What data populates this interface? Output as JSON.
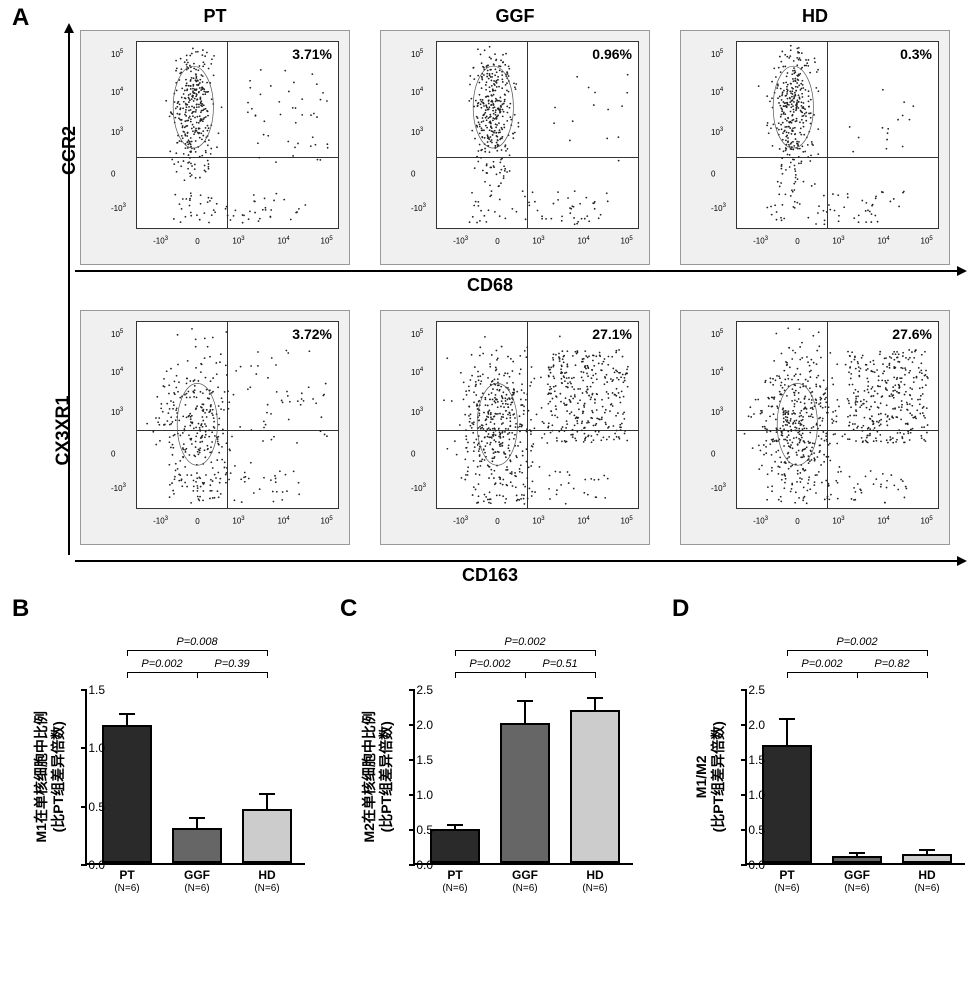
{
  "panelA": {
    "label": "A",
    "columns": [
      "PT",
      "GGF",
      "HD"
    ],
    "row1": {
      "ylabel": "CCR2",
      "xlabel": "CD68",
      "plots": [
        {
          "pct": "3.71%",
          "qx": 0.45,
          "qy": 0.62
        },
        {
          "pct": "0.96%",
          "qx": 0.45,
          "qy": 0.62
        },
        {
          "pct": "0.3%",
          "qx": 0.45,
          "qy": 0.62
        }
      ],
      "ticks": {
        "x": [
          "-10^3",
          "0",
          "10^3",
          "10^4",
          "10^5"
        ],
        "y": [
          "-10^3",
          "0",
          "10^3",
          "10^4",
          "10^5"
        ]
      }
    },
    "row2": {
      "ylabel": "CX3XR1",
      "xlabel": "CD163",
      "plots": [
        {
          "pct": "3.72%",
          "qx": 0.45,
          "qy": 0.58
        },
        {
          "pct": "27.1%",
          "qx": 0.45,
          "qy": 0.58
        },
        {
          "pct": "27.6%",
          "qx": 0.45,
          "qy": 0.58
        }
      ],
      "ticks": {
        "x": [
          "-10^3",
          "0",
          "10^3",
          "10^4",
          "10^5"
        ],
        "y": [
          "-10^3",
          "0",
          "10^3",
          "10^4",
          "10^5"
        ]
      }
    }
  },
  "panelB": {
    "label": "B",
    "ylabel_line1": "M1在单核细胞中比例",
    "ylabel_line2": "(比PT组差异倍数)",
    "ymax": 1.5,
    "ytick_step": 0.5,
    "yticks": [
      "0.0",
      "0.5",
      "1.0",
      "1.5"
    ],
    "groups": [
      "PT",
      "GGF",
      "HD"
    ],
    "n_label": "(N=6)",
    "values": [
      1.18,
      0.3,
      0.46
    ],
    "errors": [
      0.1,
      0.09,
      0.13
    ],
    "colors": [
      "#2a2a2a",
      "#666666",
      "#cccccc"
    ],
    "pvalues": {
      "pt_ggf": "P=0.002",
      "ggf_hd": "P=0.39",
      "pt_hd": "P=0.008"
    }
  },
  "panelC": {
    "label": "C",
    "ylabel_line1": "M2在单核细胞中比例",
    "ylabel_line2": "(比PT组差异倍数)",
    "ymax": 2.5,
    "ytick_step": 0.5,
    "yticks": [
      "0.0",
      "0.5",
      "1.0",
      "1.5",
      "2.0",
      "2.5"
    ],
    "groups": [
      "PT",
      "GGF",
      "HD"
    ],
    "n_label": "(N=6)",
    "values": [
      0.48,
      2.0,
      2.18
    ],
    "errors": [
      0.07,
      0.32,
      0.18
    ],
    "colors": [
      "#2a2a2a",
      "#666666",
      "#cccccc"
    ],
    "pvalues": {
      "pt_ggf": "P=0.002",
      "ggf_hd": "P=0.51",
      "pt_hd": "P=0.002"
    }
  },
  "panelD": {
    "label": "D",
    "ylabel_line1": "M1/M2",
    "ylabel_line2": "(比PT组差异倍数)",
    "ymax": 2.5,
    "ytick_step": 0.5,
    "yticks": [
      "0.0",
      "0.5",
      "1.0",
      "1.5",
      "2.0",
      "2.5"
    ],
    "groups": [
      "PT",
      "GGF",
      "HD"
    ],
    "n_label": "(N=6)",
    "values": [
      1.68,
      0.1,
      0.13
    ],
    "errors": [
      0.38,
      0.04,
      0.05
    ],
    "colors": [
      "#2a2a2a",
      "#666666",
      "#cccccc"
    ],
    "pvalues": {
      "pt_ggf": "P=0.002",
      "ggf_hd": "P=0.82",
      "pt_hd": "P=0.002"
    }
  }
}
